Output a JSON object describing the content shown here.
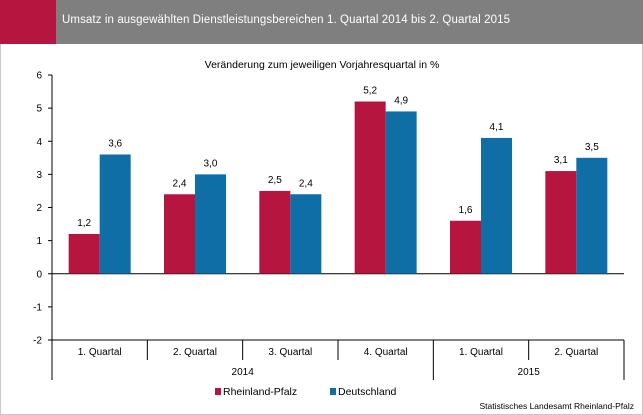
{
  "header": {
    "title": "Umsatz in ausgewählten Dienstleistungsbereichen 1. Quartal 2014 bis 2. Quartal 2015"
  },
  "colors": {
    "header_bg": "#7f7f7f",
    "accent": "#b5153f",
    "series_rlp": "#b5153f",
    "series_de": "#0f6ea6"
  },
  "footer": {
    "source": "Statistisches Landesamt Rheinland-Pfalz"
  },
  "chart_data": {
    "type": "bar",
    "subtitle": "Veränderung zum jeweiligen Vorjahresquartal  in %",
    "categories": [
      "1. Quartal",
      "2. Quartal",
      "3. Quartal",
      "4. Quartal",
      "1. Quartal",
      "2. Quartal"
    ],
    "groups": [
      {
        "label": "2014",
        "span": 4
      },
      {
        "label": "2015",
        "span": 2
      }
    ],
    "series": [
      {
        "name": "Rheinland-Pfalz",
        "values": [
          1.2,
          2.4,
          2.5,
          5.2,
          1.6,
          3.1
        ],
        "labels": [
          "1,2",
          "2,4",
          "2,5",
          "5,2",
          "1,6",
          "3,1"
        ]
      },
      {
        "name": "Deutschland",
        "values": [
          3.6,
          3.0,
          2.4,
          4.9,
          4.1,
          3.5
        ],
        "labels": [
          "3,6",
          "3,0",
          "2,4",
          "4,9",
          "4,1",
          "3,5"
        ]
      }
    ],
    "ylim": [
      -2,
      6
    ],
    "yticks": [
      -2,
      -1,
      0,
      1,
      2,
      3,
      4,
      5,
      6
    ],
    "grid": false,
    "legend": "bottom-center"
  }
}
